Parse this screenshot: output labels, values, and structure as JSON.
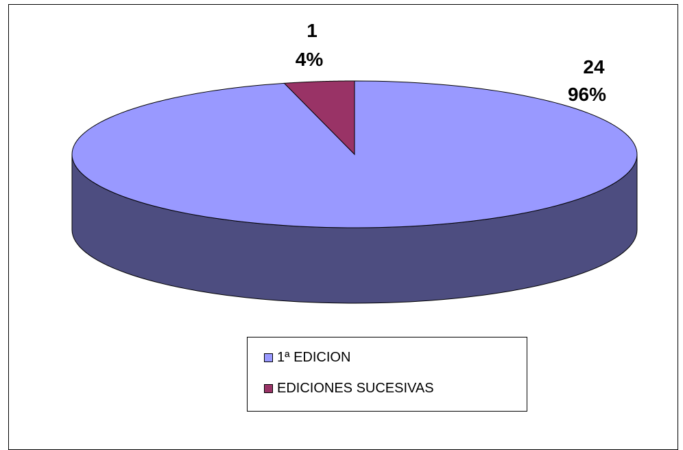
{
  "chart_data": {
    "type": "pie",
    "style": "3d",
    "categories": [
      "1ª EDICION",
      "EDICIONES SUCESIVAS"
    ],
    "values": [
      24,
      1
    ],
    "percentages": [
      "96%",
      "4%"
    ],
    "value_labels": [
      "24",
      "1"
    ],
    "colors": [
      "#9999ff",
      "#993366"
    ],
    "side_colors": [
      "#4d4d80",
      "#4d1a33"
    ],
    "title": "",
    "legend": "bottom-center"
  }
}
